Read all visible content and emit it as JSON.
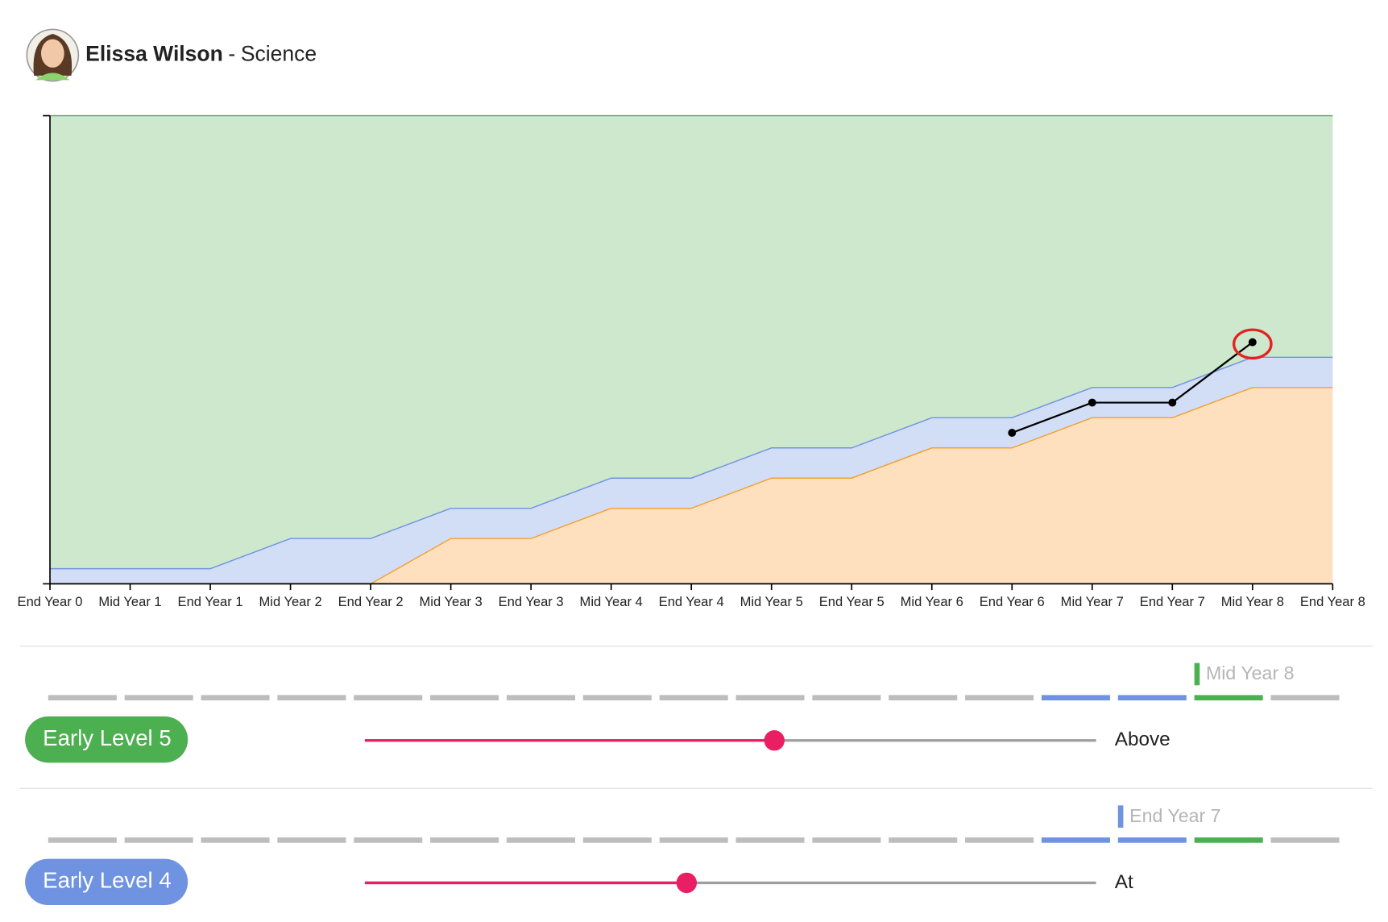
{
  "header": {
    "name": "Elissa Wilson",
    "separator": "-",
    "subject": "Science"
  },
  "chart_data": {
    "type": "area",
    "categories": [
      "End Year 0",
      "Mid Year 1",
      "End Year 1",
      "Mid Year 2",
      "End Year 2",
      "Mid Year 3",
      "End Year 3",
      "Mid Year 4",
      "End Year 4",
      "Mid Year 5",
      "End Year 5",
      "Mid Year 6",
      "End Year 6",
      "Mid Year 7",
      "End Year 7",
      "Mid Year 8",
      "End Year 8"
    ],
    "ylim": [
      0,
      31
    ],
    "above_color": "#cde8cd",
    "series": [
      {
        "color": "#f5a030",
        "fill": "#fee0bf",
        "values": [
          0,
          0,
          0,
          0,
          0,
          3,
          3,
          5,
          5,
          7,
          7,
          9,
          9,
          11,
          11,
          13,
          13
        ]
      },
      {
        "color": "#6f93e0",
        "fill": "#d2ddf6",
        "values": [
          1,
          1,
          1,
          3,
          3,
          5,
          5,
          7,
          7,
          9,
          9,
          11,
          11,
          13,
          13,
          15,
          15
        ]
      }
    ],
    "student": {
      "color": "#000000",
      "values": [
        null,
        null,
        null,
        null,
        null,
        null,
        null,
        null,
        null,
        null,
        null,
        null,
        10,
        12,
        12,
        16,
        null
      ],
      "highlight_index": 15,
      "highlight_color": "#e52222"
    }
  },
  "rows": [
    {
      "level": "Early Level 5",
      "level_color": "#4caf50",
      "term_label": "Mid Year 8",
      "term_index": 15,
      "segment_colors": [
        "#bdbdbd",
        "#bdbdbd",
        "#bdbdbd",
        "#bdbdbd",
        "#bdbdbd",
        "#bdbdbd",
        "#bdbdbd",
        "#bdbdbd",
        "#bdbdbd",
        "#bdbdbd",
        "#bdbdbd",
        "#bdbdbd",
        "#bdbdbd",
        "#6f93e0",
        "#6f93e0",
        "#4caf50",
        "#bdbdbd"
      ],
      "slider_value": 56,
      "slider_range": [
        0,
        100
      ],
      "status": "Above"
    },
    {
      "level": "Early Level 4",
      "level_color": "#6f93e0",
      "term_label": "End Year 7",
      "term_index": 14,
      "segment_colors": [
        "#bdbdbd",
        "#bdbdbd",
        "#bdbdbd",
        "#bdbdbd",
        "#bdbdbd",
        "#bdbdbd",
        "#bdbdbd",
        "#bdbdbd",
        "#bdbdbd",
        "#bdbdbd",
        "#bdbdbd",
        "#bdbdbd",
        "#bdbdbd",
        "#6f93e0",
        "#6f93e0",
        "#4caf50",
        "#bdbdbd"
      ],
      "slider_value": 44,
      "slider_range": [
        0,
        100
      ],
      "status": "At"
    }
  ]
}
